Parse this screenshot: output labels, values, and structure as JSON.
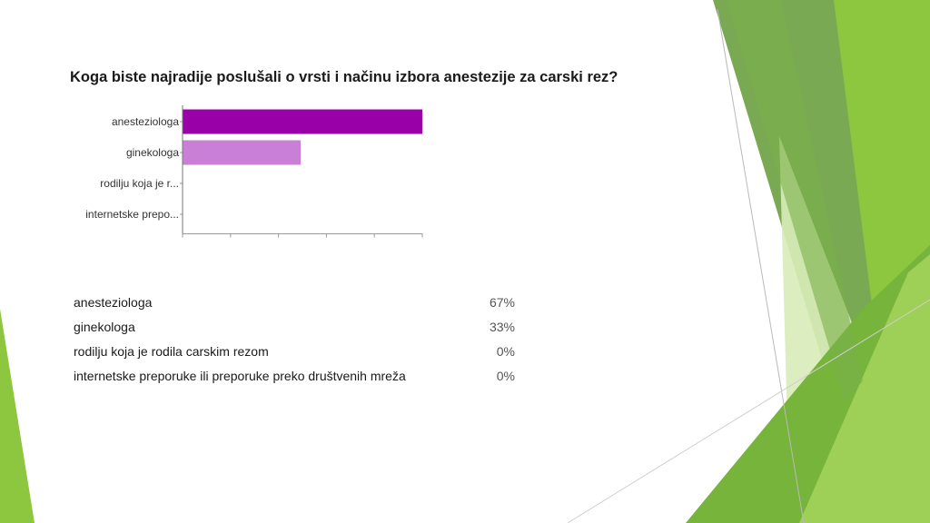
{
  "title": "Koga biste najradije poslušali o vrsti i načinu izbora anestezije za carski rez?",
  "colors": {
    "bar_primary": "#9a00a8",
    "bar_secondary": "#c97fd6",
    "accent_green": "#8dc63f",
    "accent_dark_green": "#5a9a2e"
  },
  "chart_data": {
    "type": "bar",
    "orientation": "horizontal",
    "categories": [
      "anesteziologa",
      "ginekologa",
      "rodilju koja je r...",
      "internetske prepo..."
    ],
    "values": [
      67,
      33,
      0,
      0
    ],
    "bar_colors": [
      "#9a00a8",
      "#c97fd6",
      "#c97fd6",
      "#c97fd6"
    ],
    "xlim": [
      0,
      67
    ]
  },
  "results": [
    {
      "label": "anesteziologa",
      "percent": "67%"
    },
    {
      "label": "ginekologa",
      "percent": "33%"
    },
    {
      "label": "rodilju koja je rodila carskim rezom",
      "percent": "0%"
    },
    {
      "label": "internetske preporuke ili preporuke preko društvenih mreža",
      "percent": "0%"
    }
  ]
}
